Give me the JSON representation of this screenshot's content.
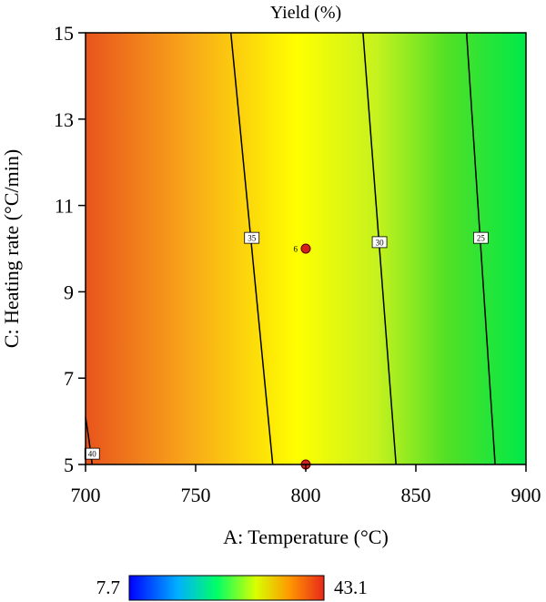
{
  "chart_data": {
    "type": "contour",
    "title": "Yield (%)",
    "xlabel": "A: Temperature (°C)",
    "ylabel": "C: Heating rate (°C/min)",
    "xlim": [
      700,
      900
    ],
    "ylim": [
      5,
      15
    ],
    "x_ticks": [
      "700",
      "750",
      "800",
      "850",
      "900"
    ],
    "y_ticks": [
      "5",
      "7",
      "9",
      "11",
      "13",
      "15"
    ],
    "colorbar": {
      "min_label": "7.7",
      "max_label": "43.1",
      "min": 7.7,
      "max": 43.1
    },
    "colormap": [
      "#0000ff",
      "#00c8ff",
      "#00ff66",
      "#ffff00",
      "#ff8c00",
      "#e8411a"
    ],
    "contours": [
      {
        "level": 40,
        "label": "40",
        "points": [
          [
            700,
            6.1
          ],
          [
            701.5,
            5.6
          ],
          [
            703,
            5.0
          ]
        ],
        "label_at": [
          703,
          5.25
        ]
      },
      {
        "level": 35,
        "label": "35",
        "points": [
          [
            766,
            15
          ],
          [
            785,
            5
          ]
        ],
        "label_at": [
          775.5,
          10.25
        ]
      },
      {
        "level": 30,
        "label": "30",
        "points": [
          [
            826,
            15
          ],
          [
            841,
            5
          ]
        ],
        "label_at": [
          833.5,
          10.15
        ]
      },
      {
        "level": 25,
        "label": "25",
        "points": [
          [
            873,
            15
          ],
          [
            886,
            5
          ]
        ],
        "label_at": [
          879.5,
          10.25
        ]
      }
    ],
    "design_points": [
      {
        "x": 800,
        "y": 10,
        "label": "6"
      },
      {
        "x": 800,
        "y": 5,
        "label": ""
      }
    ]
  }
}
